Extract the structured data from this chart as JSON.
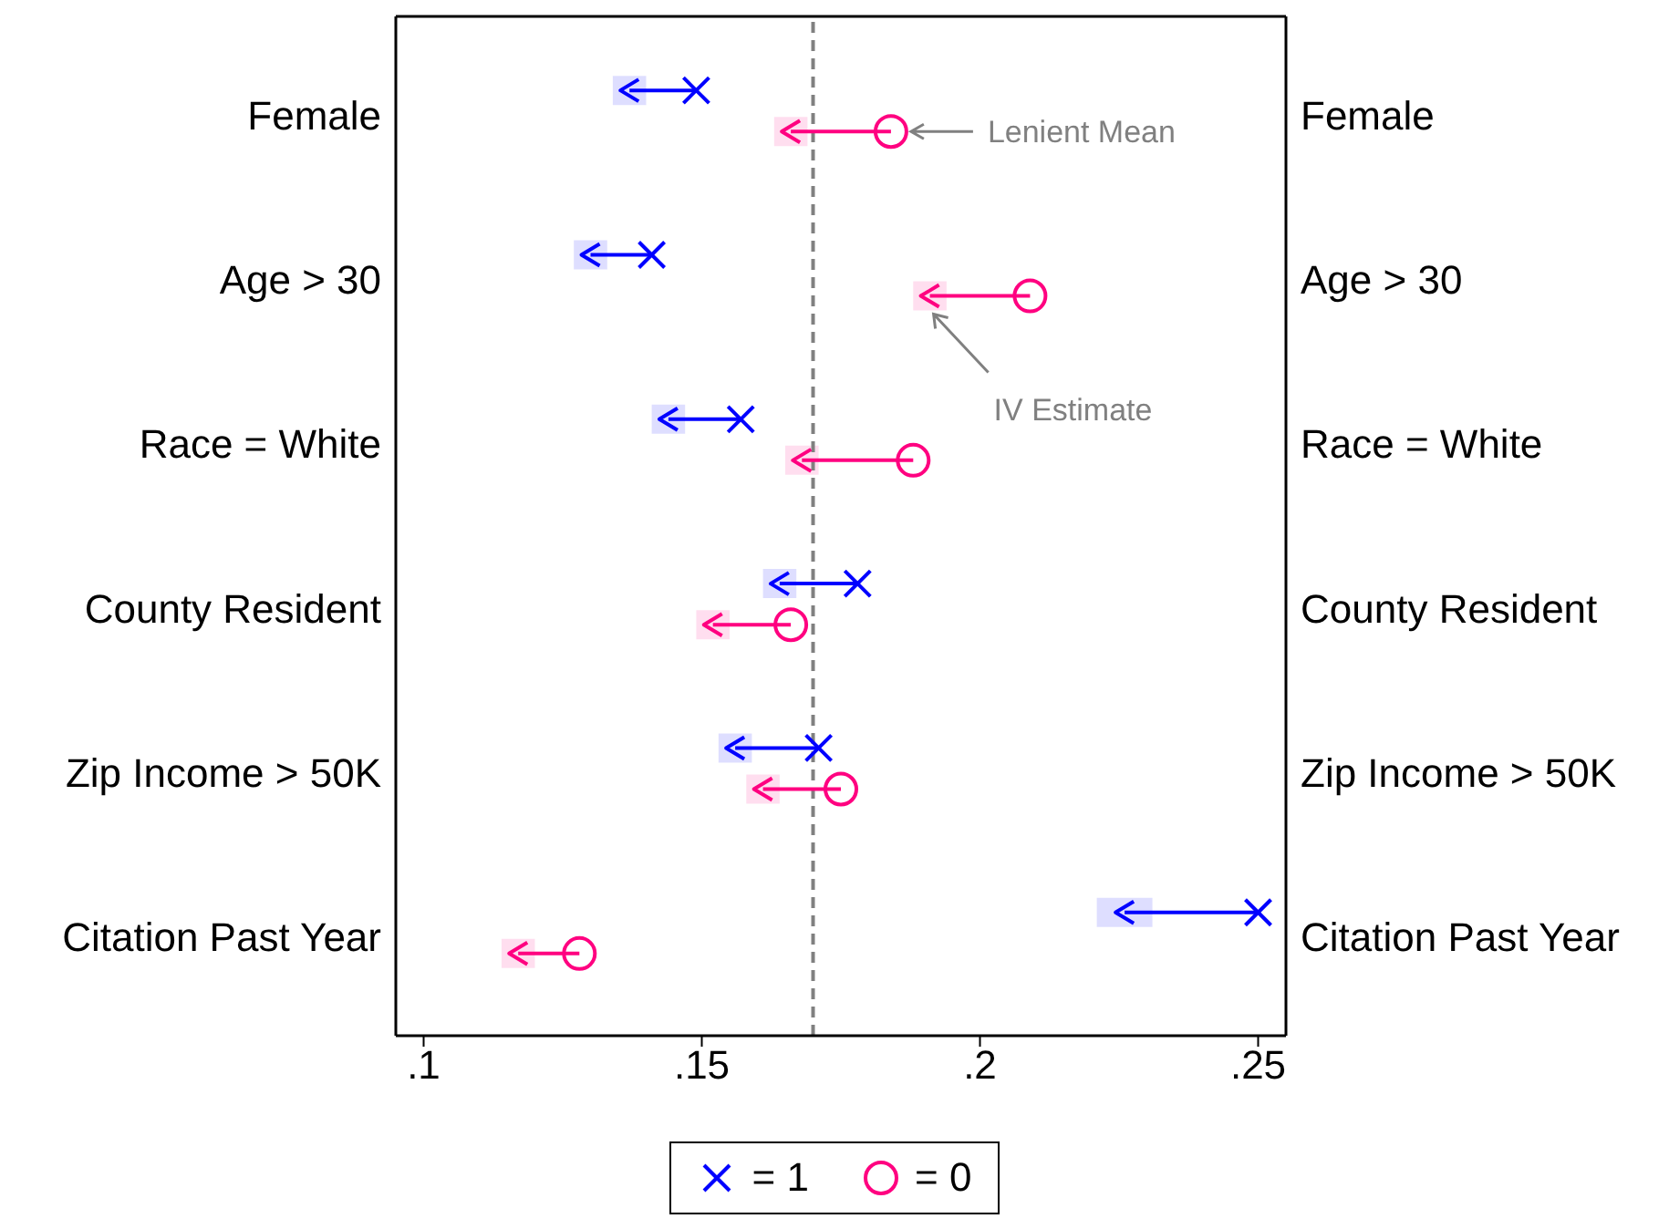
{
  "chart_data": {
    "type": "scatter",
    "orientation": "horizontal",
    "categories": [
      "Female",
      "Age > 30",
      "Race = White",
      "County Resident",
      "Zip Income > 50K",
      "Citation Past Year"
    ],
    "series": [
      {
        "name": "= 1",
        "color": "#0000ff",
        "marker": "cross",
        "values": [
          0.149,
          0.141,
          0.157,
          0.178,
          0.171,
          0.25
        ]
      },
      {
        "name": "= 0",
        "color": "#ff0080",
        "marker": "circle",
        "values": [
          0.184,
          0.209,
          0.188,
          0.166,
          0.175,
          0.128
        ]
      },
      {
        "color": "#0000ff",
        "values": [
          0.137,
          0.13,
          0.144,
          0.164,
          0.156,
          0.226
        ],
        "errors": [
          0.003,
          0.003,
          0.003,
          0.003,
          0.003,
          0.005
        ]
      },
      {
        "color": "#ff0080",
        "values": [
          0.166,
          0.191,
          0.168,
          0.152,
          0.161,
          0.117
        ],
        "errors": [
          0.003,
          0.003,
          0.003,
          0.003,
          0.003,
          0.003
        ]
      }
    ],
    "xlim": [
      0.095,
      0.255
    ],
    "xticks": [
      {
        "value": 0.1,
        "label": ".1"
      },
      {
        "value": 0.15,
        "label": ".15"
      },
      {
        "value": 0.2,
        "label": ".2"
      },
      {
        "value": 0.25,
        "label": ".25"
      }
    ],
    "ref_lines": [
      {
        "axis": "x",
        "value": 0.17,
        "color": "#808080",
        "line_style": "dashed"
      }
    ],
    "annotations": [
      "Lenient Mean",
      "IV Estimate"
    ],
    "grid": false,
    "legend": "bottom"
  }
}
